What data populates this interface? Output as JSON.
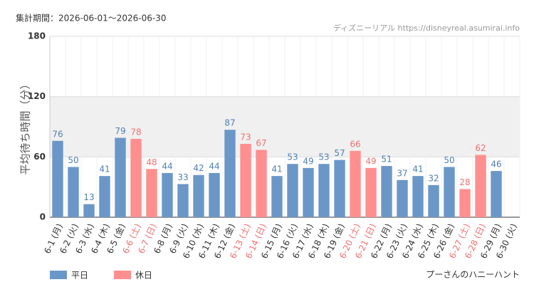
{
  "header": "集計期間：2026-06-01～2026-06-30",
  "source": "ディズニーリアル https://disneyreal.asumirai.info",
  "footer": "プーさんのハニーハント",
  "chart_data": {
    "type": "bar",
    "y_label": "平均待ち時間（分）",
    "categories": [
      "6-1 (月)",
      "6-2 (火)",
      "6-3 (水)",
      "6-4 (木)",
      "6-5 (金)",
      "6-6 (土)",
      "6-7 (日)",
      "6-8 (月)",
      "6-9 (火)",
      "6-10 (水)",
      "6-11 (木)",
      "6-12 (金)",
      "6-13 (土)",
      "6-14 (日)",
      "6-15 (月)",
      "6-16 (火)",
      "6-17 (水)",
      "6-18 (木)",
      "6-19 (金)",
      "6-20 (土)",
      "6-21 (日)",
      "6-22 (月)",
      "6-23 (火)",
      "6-24 (水)",
      "6-25 (木)",
      "6-26 (金)",
      "6-27 (土)",
      "6-28 (日)",
      "6-29 (月)",
      "6-30 (火)"
    ],
    "series": [
      {
        "name": "平日",
        "color": "#6b97c8",
        "label_color": "#4f7fb5",
        "values": [
          76,
          50,
          13,
          41,
          79,
          null,
          null,
          44,
          33,
          42,
          44,
          87,
          null,
          null,
          41,
          53,
          49,
          53,
          57,
          null,
          null,
          51,
          37,
          41,
          32,
          50,
          null,
          null,
          46,
          null
        ]
      },
      {
        "name": "休日",
        "color": "#ff8f8f",
        "label_color": "#f07070",
        "values": [
          null,
          null,
          null,
          null,
          null,
          78,
          48,
          null,
          null,
          null,
          null,
          null,
          73,
          67,
          null,
          null,
          null,
          null,
          null,
          66,
          49,
          null,
          null,
          null,
          null,
          null,
          28,
          62,
          null,
          null
        ]
      }
    ],
    "ylim": [
      0,
      180
    ],
    "yticks": [
      0,
      60,
      120,
      180
    ],
    "shaded_range": [
      60,
      120
    ],
    "grid": true,
    "legend": "bottom-left"
  }
}
